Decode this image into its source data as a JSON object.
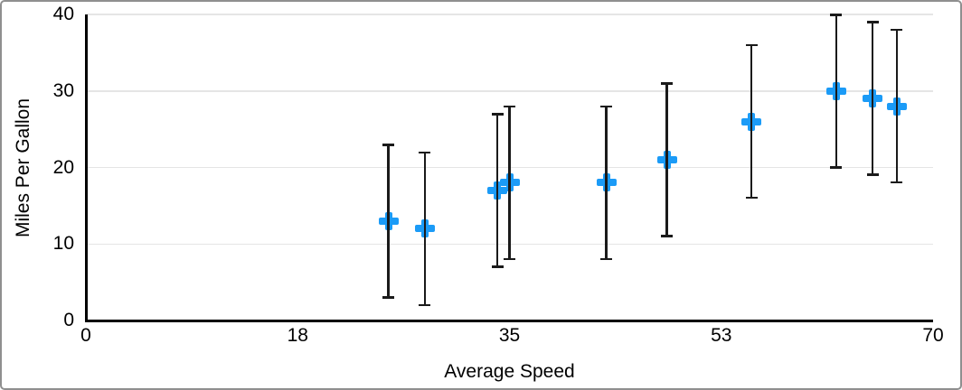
{
  "chart_data": {
    "type": "scatter",
    "title": "",
    "xlabel": "Average Speed",
    "ylabel": "Miles Per Gallon",
    "xlim": [
      0,
      70
    ],
    "ylim": [
      0,
      40
    ],
    "x_tick_values": [
      0,
      17.5,
      35,
      52.5,
      70
    ],
    "x_tick_labels": [
      "0",
      "18",
      "35",
      "53",
      "70"
    ],
    "y_tick_values": [
      0,
      10,
      20,
      30,
      40
    ],
    "y_tick_labels": [
      "0",
      "10",
      "20",
      "30",
      "40"
    ],
    "grid": "horizontal-only",
    "legend_position": "none",
    "series": [
      {
        "name": "Miles Per Gallon",
        "marker": "plus",
        "marker_color": "#1B9BF7",
        "error_bar_color": "#1A1A1A",
        "error_plus": 10,
        "error_minus": 10,
        "points": [
          {
            "x": 25,
            "y": 13
          },
          {
            "x": 28,
            "y": 12
          },
          {
            "x": 34,
            "y": 17
          },
          {
            "x": 35,
            "y": 18
          },
          {
            "x": 43,
            "y": 18
          },
          {
            "x": 48,
            "y": 21
          },
          {
            "x": 55,
            "y": 26
          },
          {
            "x": 62,
            "y": 30
          },
          {
            "x": 65,
            "y": 29
          },
          {
            "x": 67,
            "y": 28
          }
        ]
      }
    ]
  },
  "colors": {
    "background": "#FFFFFF",
    "axis": "#000000",
    "gridline": "#E5E5E5",
    "border": "#8F8F8F",
    "text": "#000000",
    "marker": "#1B9BF7"
  }
}
